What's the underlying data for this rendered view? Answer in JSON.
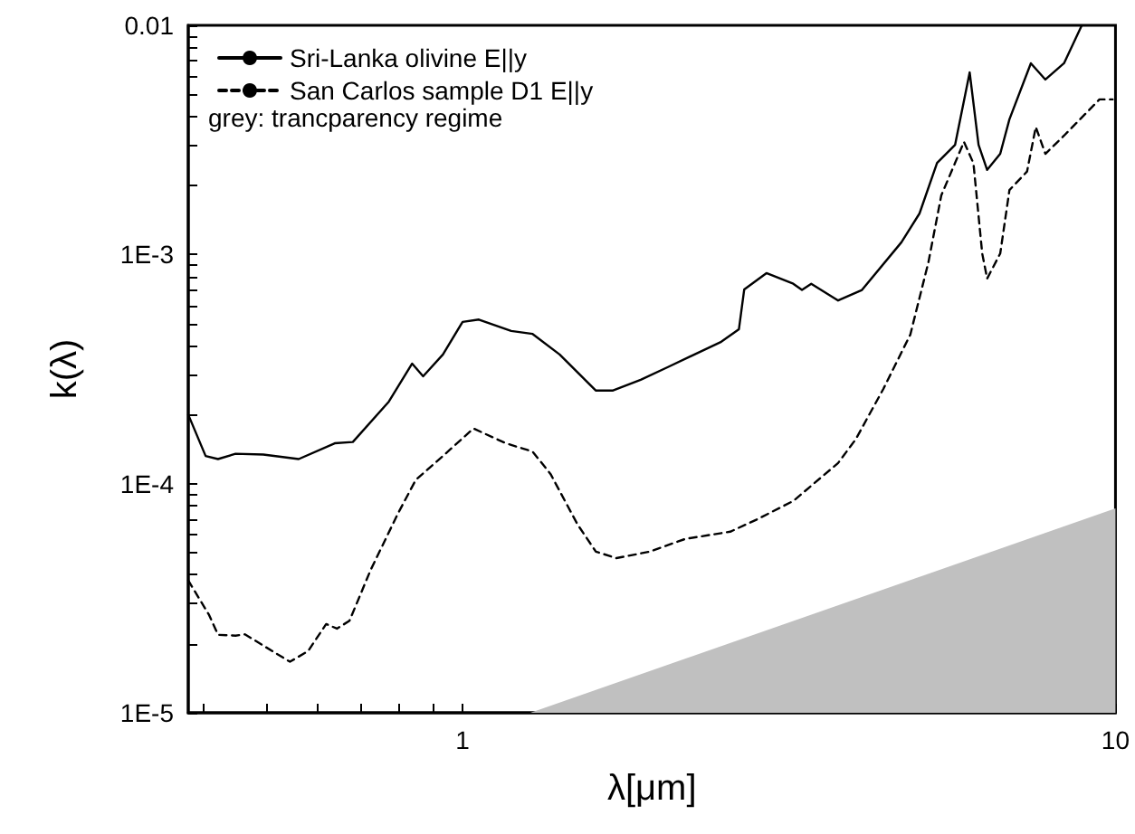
{
  "chart_data": {
    "type": "line",
    "xlabel": "λ[μm]",
    "ylabel": "k(λ)",
    "log": "xy",
    "grid": false,
    "legend": "top left",
    "marker": "none",
    "xlim": [
      0.38,
      10
    ],
    "ylim": [
      1e-05,
      0.01
    ],
    "xticks": [
      {
        "value": 0.4,
        "label": null
      },
      {
        "value": 0.5,
        "label": null
      },
      {
        "value": 0.6,
        "label": null
      },
      {
        "value": 0.7,
        "label": null
      },
      {
        "value": 0.8,
        "label": null
      },
      {
        "value": 0.9,
        "label": null
      },
      1,
      {
        "value": 2,
        "label": null
      },
      {
        "value": 3,
        "label": null
      },
      {
        "value": 4,
        "label": null
      },
      {
        "value": 5,
        "label": null
      },
      {
        "value": 6,
        "label": null
      },
      {
        "value": 7,
        "label": null
      },
      {
        "value": 8,
        "label": null
      },
      {
        "value": 9,
        "label": null
      },
      10
    ],
    "yticks": [
      {
        "value": 1e-05,
        "label": "1E-5"
      },
      {
        "value": 2e-05,
        "label": null
      },
      {
        "value": 3e-05,
        "label": null
      },
      {
        "value": 4e-05,
        "label": null
      },
      {
        "value": 5e-05,
        "label": null
      },
      {
        "value": 6e-05,
        "label": null
      },
      {
        "value": 7e-05,
        "label": null
      },
      {
        "value": 8e-05,
        "label": null
      },
      {
        "value": 9e-05,
        "label": null
      },
      {
        "value": 0.0001,
        "label": "1E-4"
      },
      {
        "value": 0.0002,
        "label": null
      },
      {
        "value": 0.0003,
        "label": null
      },
      {
        "value": 0.0004,
        "label": null
      },
      {
        "value": 0.0005,
        "label": null
      },
      {
        "value": 0.0006,
        "label": null
      },
      {
        "value": 0.0007,
        "label": null
      },
      {
        "value": 0.0008,
        "label": null
      },
      {
        "value": 0.0009,
        "label": null
      },
      {
        "value": 0.001,
        "label": "1E-3"
      },
      {
        "value": 0.002,
        "label": null
      },
      {
        "value": 0.003,
        "label": null
      },
      {
        "value": 0.004,
        "label": null
      },
      {
        "value": 0.005,
        "label": null
      },
      {
        "value": 0.006,
        "label": null
      },
      {
        "value": 0.007,
        "label": null
      },
      {
        "value": 0.008,
        "label": null
      },
      {
        "value": 0.009,
        "label": null
      },
      0.01
    ],
    "annotations": [
      "grey: trancparency regime"
    ],
    "series": [
      {
        "name": "Sri-Lanka olivine E||y",
        "color": "#000000",
        "line_style": "solid",
        "x": [
          0.38,
          0.404,
          0.422,
          0.449,
          0.495,
          0.561,
          0.637,
          0.679,
          0.771,
          0.837,
          0.87,
          0.933,
          1.0,
          1.059,
          1.187,
          1.28,
          1.408,
          1.599,
          1.7,
          1.874,
          2.06,
          2.49,
          2.65,
          2.7,
          2.92,
          3.21,
          3.31,
          3.42,
          3.76,
          4.09,
          4.7,
          5.01,
          5.33,
          5.68,
          5.98,
          6.17,
          6.36,
          6.66,
          6.88,
          7.42,
          7.81,
          8.34,
          8.88
        ],
        "values": [
          0.0002,
          0.000132,
          0.000128,
          0.000135,
          0.000134,
          0.000128,
          0.00015,
          0.000152,
          0.000228,
          0.000334,
          0.000294,
          0.000366,
          0.000508,
          0.00052,
          0.000464,
          0.00045,
          0.000366,
          0.000255,
          0.000255,
          0.000284,
          0.000322,
          0.000416,
          0.000472,
          0.000704,
          0.000829,
          0.000745,
          0.0007,
          0.000745,
          0.00063,
          0.0007,
          0.00113,
          0.00151,
          0.00251,
          0.00301,
          0.00623,
          0.00301,
          0.00234,
          0.00275,
          0.00389,
          0.00683,
          0.0058,
          0.00683,
          0.01
        ]
      },
      {
        "name": "San Carlos sample D1 E||y",
        "color": "#000000",
        "line_style": "dashed",
        "x": [
          0.38,
          0.409,
          0.422,
          0.449,
          0.464,
          0.511,
          0.544,
          0.58,
          0.618,
          0.642,
          0.671,
          0.723,
          0.796,
          0.848,
          0.933,
          1.039,
          1.165,
          1.28,
          1.364,
          1.5,
          1.6,
          1.72,
          1.935,
          2.194,
          2.57,
          2.83,
          3.21,
          3.76,
          4.0,
          4.41,
          4.85,
          5.17,
          5.41,
          5.68,
          5.86,
          6.06,
          6.25,
          6.36,
          6.66,
          6.88,
          7.32,
          7.55,
          7.81,
          8.34,
          8.88,
          9.45,
          9.9
        ],
        "values": [
          3.78e-05,
          2.67e-05,
          2.19e-05,
          2.17e-05,
          2.2e-05,
          1.86e-05,
          1.67e-05,
          1.86e-05,
          2.44e-05,
          2.33e-05,
          2.52e-05,
          4.2e-05,
          7.4e-05,
          0.000104,
          0.000132,
          0.000174,
          0.00015,
          0.000138,
          0.00011,
          6.63e-05,
          5.05e-05,
          4.73e-05,
          5.05e-05,
          5.74e-05,
          6.17e-05,
          7e-05,
          8.4e-05,
          0.000123,
          0.000156,
          0.000259,
          0.000447,
          0.000925,
          0.00181,
          0.00251,
          0.0031,
          0.0025,
          0.00101,
          0.000785,
          0.00101,
          0.00191,
          0.0023,
          0.0036,
          0.00275,
          0.0033,
          0.00396,
          0.00475,
          0.00475
        ]
      },
      {
        "type": "area",
        "color": "#c0c0c0",
        "x": [
          1.27,
          10
        ],
        "values": [
          1e-05,
          7.8e-05
        ]
      }
    ]
  }
}
